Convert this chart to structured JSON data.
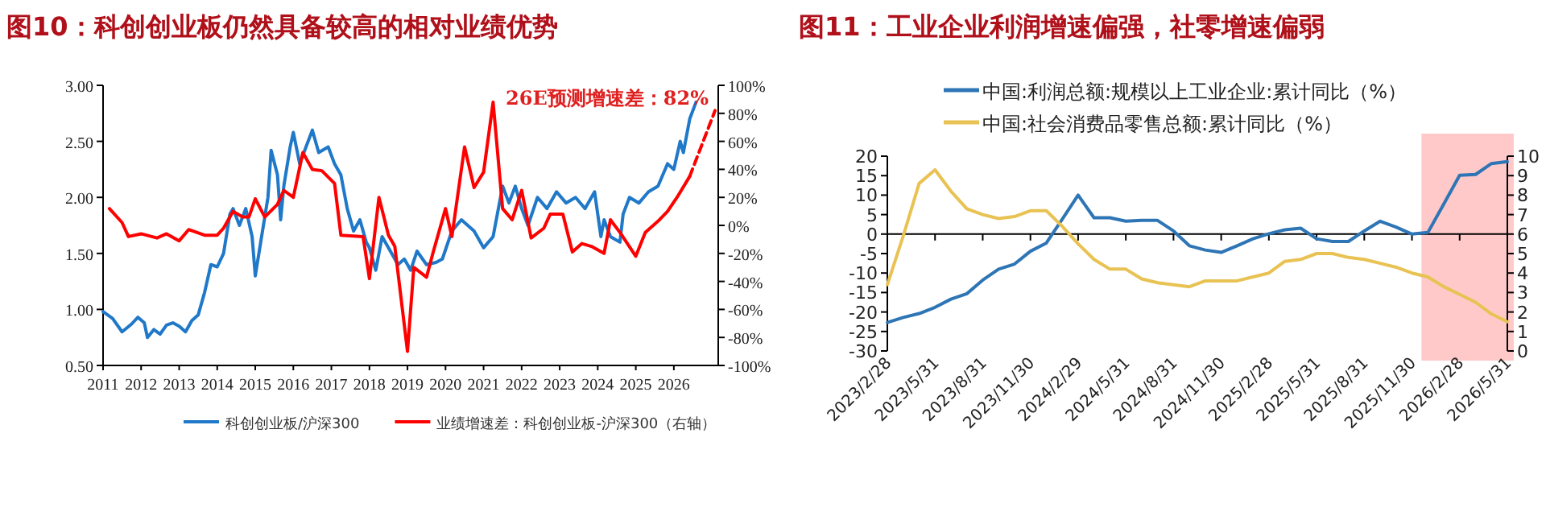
{
  "chart_data": [
    {
      "type": "line",
      "title": "图10：科创创业板仍然具备较高的相对业绩优势",
      "legend": "bottom",
      "xlim": [
        "2011-01",
        "2027-03"
      ],
      "xticks": [
        {
          "value": "2011",
          "label": "2011"
        },
        {
          "value": "2012",
          "label": "2012"
        },
        {
          "value": "2013",
          "label": "2013"
        },
        {
          "value": "2014",
          "label": "2014"
        },
        {
          "value": "2015",
          "label": "2015"
        },
        {
          "value": "2016",
          "label": "2016"
        },
        {
          "value": "2017",
          "label": "2017"
        },
        {
          "value": "2018",
          "label": "2018"
        },
        {
          "value": "2019",
          "label": "2019"
        },
        {
          "value": "2020",
          "label": "2020"
        },
        {
          "value": "2021",
          "label": "2021"
        },
        {
          "value": "2022",
          "label": "2022"
        },
        {
          "value": "2023",
          "label": "2023"
        },
        {
          "value": "2024",
          "label": "2024"
        },
        {
          "value": "2025",
          "label": "2025"
        },
        {
          "value": "2026",
          "label": "2026"
        }
      ],
      "ylim": [
        0.5,
        3.0
      ],
      "yticks": [
        {
          "value": 0.5,
          "label": "0.50"
        },
        {
          "value": 1.0,
          "label": "1.00"
        },
        {
          "value": 1.5,
          "label": "1.50"
        },
        {
          "value": 2.0,
          "label": "2.00"
        },
        {
          "value": 2.5,
          "label": "2.50"
        },
        {
          "value": 3.0,
          "label": "3.00"
        }
      ],
      "y2lim": [
        -100,
        100
      ],
      "y2ticks": [
        {
          "value": -100,
          "label": "-100%"
        },
        {
          "value": -80,
          "label": "-80%"
        },
        {
          "value": -60,
          "label": "-60%"
        },
        {
          "value": -40,
          "label": "-40%"
        },
        {
          "value": -20,
          "label": "-20%"
        },
        {
          "value": 0,
          "label": "0%"
        },
        {
          "value": 20,
          "label": "20%"
        },
        {
          "value": 40,
          "label": "40%"
        },
        {
          "value": 60,
          "label": "60%"
        },
        {
          "value": 80,
          "label": "80%"
        },
        {
          "value": 100,
          "label": "100%"
        }
      ],
      "annotations": [
        "26E预测增速差：82%"
      ],
      "series": [
        {
          "name": "科创创业板/沪深300",
          "color": "#1f78c8",
          "x": [
            "2011-01",
            "2011-04",
            "2011-07",
            "2011-10",
            "2011-12",
            "2012-02",
            "2012-03",
            "2012-05",
            "2012-07",
            "2012-09",
            "2012-11",
            "2013-01",
            "2013-03",
            "2013-05",
            "2013-07",
            "2013-09",
            "2013-11",
            "2014-01",
            "2014-03",
            "2014-05",
            "2014-06",
            "2014-08",
            "2014-10",
            "2014-12",
            "2015-01",
            "2015-03",
            "2015-05",
            "2015-06",
            "2015-08",
            "2015-09",
            "2015-10",
            "2015-12",
            "2016-01",
            "2016-03",
            "2016-05",
            "2016-07",
            "2016-09",
            "2016-12",
            "2017-02",
            "2017-04",
            "2017-06",
            "2017-08",
            "2017-10",
            "2017-12",
            "2018-01",
            "2018-03",
            "2018-05",
            "2018-08",
            "2018-10",
            "2018-12",
            "2019-02",
            "2019-04",
            "2019-07",
            "2019-10",
            "2019-12",
            "2020-03",
            "2020-06",
            "2020-08",
            "2020-10",
            "2021-01",
            "2021-04",
            "2021-07",
            "2021-09",
            "2021-11",
            "2022-01",
            "2022-03",
            "2022-06",
            "2022-09",
            "2022-12",
            "2023-03",
            "2023-06",
            "2023-09",
            "2023-12",
            "2024-02",
            "2024-03",
            "2024-05",
            "2024-08",
            "2024-09",
            "2024-11",
            "2025-02",
            "2025-05",
            "2025-08",
            "2025-11",
            "2026-01",
            "2026-03",
            "2026-04",
            "2026-06",
            "2026-08"
          ],
          "values": [
            0.98,
            0.92,
            0.8,
            0.87,
            0.93,
            0.88,
            0.75,
            0.82,
            0.78,
            0.86,
            0.88,
            0.85,
            0.8,
            0.9,
            0.95,
            1.15,
            1.4,
            1.38,
            1.5,
            1.85,
            1.9,
            1.75,
            1.9,
            1.65,
            1.3,
            1.65,
            2.0,
            2.42,
            2.2,
            1.8,
            2.1,
            2.45,
            2.58,
            2.3,
            2.45,
            2.6,
            2.4,
            2.45,
            2.3,
            2.2,
            1.9,
            1.7,
            1.8,
            1.6,
            1.55,
            1.35,
            1.65,
            1.5,
            1.4,
            1.45,
            1.35,
            1.52,
            1.4,
            1.42,
            1.45,
            1.7,
            1.8,
            1.75,
            1.7,
            1.55,
            1.65,
            2.1,
            1.95,
            2.1,
            1.9,
            1.75,
            2.0,
            1.9,
            2.05,
            1.95,
            2.0,
            1.9,
            2.05,
            1.65,
            1.8,
            1.65,
            1.6,
            1.85,
            2.0,
            1.95,
            2.05,
            2.1,
            2.3,
            2.25,
            2.5,
            2.4,
            2.7,
            2.85
          ]
        },
        {
          "name": "业绩增速差：科创创业板-沪深300（右轴）",
          "color": "#ff0000",
          "axis": "y2",
          "x": [
            "2011-03",
            "2011-07",
            "2011-09",
            "2012-01",
            "2012-06",
            "2012-09",
            "2013-01",
            "2013-04",
            "2013-09",
            "2014-01",
            "2014-03",
            "2014-06",
            "2014-09",
            "2014-11",
            "2015-01",
            "2015-04",
            "2015-08",
            "2015-10",
            "2016-01",
            "2016-04",
            "2016-07",
            "2016-10",
            "2017-02",
            "2017-04",
            "2017-11",
            "2018-01",
            "2018-04",
            "2018-07",
            "2018-09",
            "2019-01",
            "2019-03",
            "2019-07",
            "2019-09",
            "2020-01",
            "2020-03",
            "2020-07",
            "2020-10",
            "2021-01",
            "2021-04",
            "2021-07",
            "2021-10",
            "2022-01",
            "2022-04",
            "2022-08",
            "2022-10",
            "2023-02",
            "2023-05",
            "2023-08",
            "2023-11",
            "2024-03",
            "2024-05",
            "2024-08",
            "2025-01",
            "2025-04",
            "2025-08",
            "2025-11",
            "2026-02",
            "2026-06"
          ],
          "values": [
            12,
            2,
            -8,
            -6,
            -9,
            -6,
            -11,
            -3,
            -7,
            -7,
            -2,
            10,
            6,
            6,
            19,
            6,
            15,
            25,
            20,
            52,
            40,
            39,
            30,
            -7,
            -8,
            -38,
            20,
            -7,
            -15,
            -90,
            -30,
            -37,
            -20,
            12,
            -8,
            56,
            27,
            38,
            88,
            12,
            4,
            25,
            -9,
            -2,
            8,
            8,
            -19,
            -13,
            -15,
            -20,
            4,
            -5,
            -22,
            -5,
            3,
            10,
            20,
            35
          ]
        },
        {
          "color": "#ff0000",
          "axis": "y2",
          "line_style": "dashed",
          "x": [
            "2026-06",
            "2027-02"
          ],
          "values": [
            35,
            82
          ]
        }
      ]
    },
    {
      "type": "line",
      "title": "图11：工业企业利润增速偏强，社零增速偏弱",
      "legend": "top",
      "categories": [
        "2023/2/28",
        null,
        null,
        "2023/5/31",
        null,
        null,
        "2023/8/31",
        null,
        null,
        "2023/11/30",
        null,
        null,
        "2024/2/29",
        null,
        null,
        "2024/5/31",
        null,
        null,
        "2024/8/31",
        null,
        null,
        "2024/11/30",
        null,
        null,
        "2025/2/28",
        null,
        null,
        "2025/5/31",
        null,
        null,
        "2025/8/31",
        null,
        null,
        "2025/11/30",
        null,
        null,
        "2026/2/28",
        null,
        null,
        "2026/5/31"
      ],
      "ylim": [
        -30,
        20
      ],
      "yticks": [
        -30,
        -25,
        -20,
        -15,
        -10,
        -5,
        0,
        5,
        10,
        15,
        20
      ],
      "y2lim": [
        0,
        10
      ],
      "y2ticks": [
        0,
        1,
        2,
        3,
        4,
        5,
        6,
        7,
        8,
        9,
        10
      ],
      "bands": [
        {
          "axis": "x",
          "from": "2025/11/30",
          "to": "2026/5/31",
          "color": "#ffc9c9"
        }
      ],
      "series": [
        {
          "name": "中国:利润总额:规模以上工业企业:累计同比（%）",
          "color": "#2e75b6",
          "values": [
            -22.7,
            -21.4,
            -20.4,
            -18.8,
            -16.7,
            -15.3,
            -11.8,
            -9.0,
            -7.7,
            -4.4,
            -2.3,
            3.8,
            10.0,
            4.2,
            4.2,
            3.3,
            3.5,
            3.5,
            0.8,
            -3.0,
            -4.1,
            -4.7,
            -3.0,
            -1.2,
            0.1,
            1.1,
            1.5,
            -1.2,
            -1.9,
            -1.9,
            0.8,
            3.3,
            1.8,
            0.0,
            0.4,
            7.7,
            15.1,
            15.3,
            18.1,
            18.6
          ]
        },
        {
          "name": "中国:社会消费品零售总额:累计同比（%）",
          "color": "#e8c252",
          "axis": "y2",
          "values": [
            3.4,
            5.9,
            8.6,
            9.3,
            8.2,
            7.3,
            7.0,
            6.8,
            6.9,
            7.2,
            7.2,
            6.4,
            5.5,
            4.7,
            4.2,
            4.2,
            3.7,
            3.5,
            3.4,
            3.3,
            3.6,
            3.6,
            3.6,
            3.8,
            4.0,
            4.6,
            4.7,
            5.0,
            5.0,
            4.8,
            4.7,
            4.5,
            4.3,
            4.0,
            3.8,
            3.3,
            2.9,
            2.5,
            1.9,
            1.5
          ]
        }
      ]
    }
  ]
}
